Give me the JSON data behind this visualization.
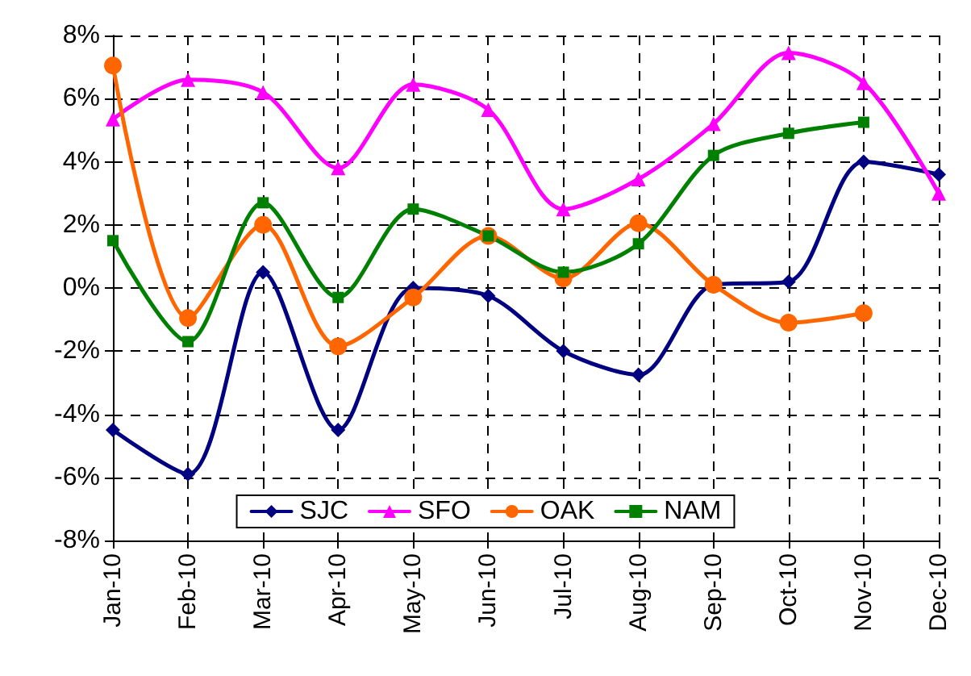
{
  "chart_data": {
    "type": "line",
    "categories": [
      "Jan-10",
      "Feb-10",
      "Mar-10",
      "Apr-10",
      "May-10",
      "Jun-10",
      "Jul-10",
      "Aug-10",
      "Sep-10",
      "Oct-10",
      "Nov-10",
      "Dec-10"
    ],
    "series": [
      {
        "name": "SJC",
        "color": "#000080",
        "marker": "diamond",
        "values": [
          -4.5,
          -5.9,
          0.5,
          -4.5,
          0.0,
          -0.25,
          -2.0,
          -2.75,
          0.1,
          0.2,
          4.0,
          3.6
        ]
      },
      {
        "name": "SFO",
        "color": "#ff00ff",
        "marker": "triangle",
        "values": [
          5.35,
          6.6,
          6.2,
          3.8,
          6.45,
          5.65,
          2.5,
          3.45,
          5.2,
          7.45,
          6.5,
          3.0
        ]
      },
      {
        "name": "OAK",
        "color": "#ff6600",
        "marker": "circle",
        "values": [
          7.05,
          -0.95,
          2.0,
          -1.85,
          -0.3,
          1.65,
          0.3,
          2.05,
          0.1,
          -1.1,
          -0.8,
          null
        ]
      },
      {
        "name": "NAM",
        "color": "#008000",
        "marker": "square",
        "values": [
          1.5,
          -1.7,
          2.7,
          -0.3,
          2.5,
          1.65,
          0.5,
          1.4,
          4.2,
          4.9,
          5.25,
          null
        ]
      }
    ],
    "ylim": [
      -8,
      8
    ],
    "yticks": [
      {
        "value": -8,
        "label": "-8%"
      },
      {
        "value": -6,
        "label": "-6%"
      },
      {
        "value": -4,
        "label": "-4%"
      },
      {
        "value": -2,
        "label": "-2%"
      },
      {
        "value": 0,
        "label": "0%"
      },
      {
        "value": 2,
        "label": "2%"
      },
      {
        "value": 4,
        "label": "4%"
      },
      {
        "value": 6,
        "label": "6%"
      },
      {
        "value": 8,
        "label": "8%"
      }
    ],
    "grid": true,
    "legend": "bottom",
    "line_style": "solid"
  }
}
